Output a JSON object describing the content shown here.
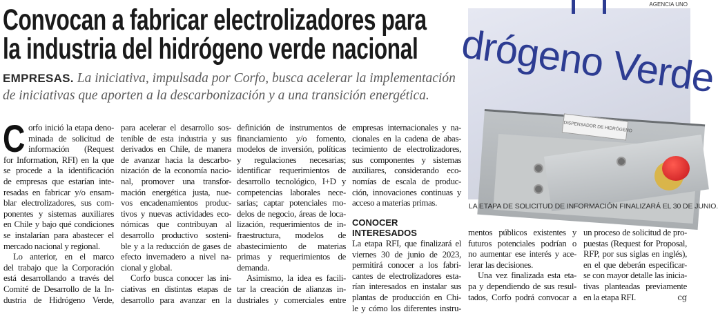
{
  "headline": {
    "lines": [
      "Convocan a fabricar electrolizadores para",
      "la industria del hidrógeno verde nacional"
    ]
  },
  "subhead": {
    "kicker": "EMPRESAS.",
    "line1": "La iniciativa, impulsada por Corfo, busca acelerar la implementación",
    "line2": "de iniciativas que aporten a la descarbonización y a una transición energética."
  },
  "photo": {
    "credit": "AGENCIA UNO",
    "sign_text": "drógeno Verde",
    "label_text": "DISPENSADOR DE HIDRÓGENO",
    "caption": "LA ETAPA DE SOLICITUD DE INFORMACIÓN FINALIZARÁ EL 30 DE JUNIO.",
    "colors": {
      "sign": "#2d3c92",
      "button": "#c4161c"
    }
  },
  "article": {
    "drop_cap": "C",
    "section_heading": "CONOCER INTERESADOS",
    "end_mark": "cg",
    "columns": [
      {
        "paragraphs": [
          {
            "dropcap": true,
            "ends": true,
            "lines": [
              "orfo inició la etapa deno-",
              "minada de solicitud de",
              "información (Request",
              "for Information, RFI) en la que",
              "se procede a la identificación",
              "de empresas que estarían inte-",
              "resadas en fabricar y/o ensam-",
              "blar electrolizadores, sus com-",
              "ponentes y sistemas auxiliares",
              "en Chile y bajo qué condiciones",
              "se instalarían para abastecer el",
              "mercado nacional y regional."
            ]
          },
          {
            "indent": true,
            "ends": false,
            "lines": [
              "Lo anterior, en el marco",
              "del trabajo que la Corporación",
              "está desarrollando a través del",
              "Comité de Desarrollo de la In-",
              "dustria de Hidrógeno Verde,"
            ]
          }
        ]
      },
      {
        "paragraphs": [
          {
            "ends": true,
            "lines": [
              "para acelerar el desarrollo sos-",
              "tenible de esta industria y sus",
              "derivados en Chile, de manera",
              "de avanzar hacia la descarbo-",
              "nización de la economía nacio-",
              "nal, promover una transfor-",
              "mación energética justa, nue-",
              "vos encadenamientos produc-",
              "tivos y nuevas actividades eco-",
              "nómicas que contribuyan al",
              "desarrollo productivo sosteni-",
              "ble y a la reducción de gases de",
              "efecto invernadero a nivel na-",
              "cional y global."
            ]
          },
          {
            "indent": true,
            "ends": false,
            "lines": [
              "Corfo busca conocer las ini-",
              "ciativas en distintas etapas de",
              "desarrollo para avanzar en la"
            ]
          }
        ]
      },
      {
        "paragraphs": [
          {
            "ends": true,
            "lines": [
              "definición de instrumentos de",
              "financiamiento y/o fomento,",
              "modelos de inversión, políticas",
              "y regulaciones necesarias;",
              "identificar requerimientos de",
              "desarrollo tecnológico, I+D y",
              "competencias laborales nece-",
              "sarias; captar potenciales mo-",
              "delos de negocio, áreas de loca-",
              "lización, requerimientos de in-",
              "fraestructura, modelos de",
              "abastecimiento de materias",
              "primas y requerimientos de",
              "demanda."
            ]
          },
          {
            "indent": true,
            "ends": false,
            "lines": [
              "Asimismo, la idea es facili-",
              "tar la creación de alianzas in-",
              "dustriales y comerciales entre"
            ]
          }
        ]
      },
      {
        "paragraphs": [
          {
            "ends": true,
            "lines": [
              "empresas internacionales y na-",
              "cionales en la cadena de abas-",
              "tecimiento de electrolizadores,",
              "sus componentes y sistemas",
              "auxiliares, considerando eco-",
              "nomías de escala de produc-",
              "ción, innovaciones continuas y",
              "acceso a materias primas."
            ]
          },
          {
            "heading": true
          },
          {
            "ends": false,
            "lines": [
              "La etapa RFI, que finalizará el",
              "viernes 30 de junio de 2023,",
              "permitirá conocer a los fabri-",
              "cantes de electrolizadores esta-",
              "rían interesados en instalar sus",
              "plantas de producción en Chi-",
              "le y cómo los diferentes instru-"
            ]
          }
        ]
      },
      {
        "paragraphs": [
          {
            "ends": true,
            "lines": [
              "mentos públicos existentes y",
              "futuros potenciales podrían o",
              "no aumentar ese interés y ace-",
              "lerar las decisiones."
            ]
          },
          {
            "indent": true,
            "ends": false,
            "lines": [
              "Una vez finalizada esta eta-",
              "pa y dependiendo de sus resul-",
              "tados, Corfo podrá convocar a"
            ]
          }
        ]
      },
      {
        "paragraphs": [
          {
            "ends": true,
            "endmark": true,
            "lines": [
              "un proceso de solicitud de pro-",
              "puestas (Request for Proposal,",
              "RFP, por sus siglas en inglés),",
              "en el que deberán especificar-",
              "se con mayor detalle las inicia-",
              "tivas planteadas previamente",
              "en la etapa RFI."
            ]
          }
        ]
      }
    ]
  }
}
